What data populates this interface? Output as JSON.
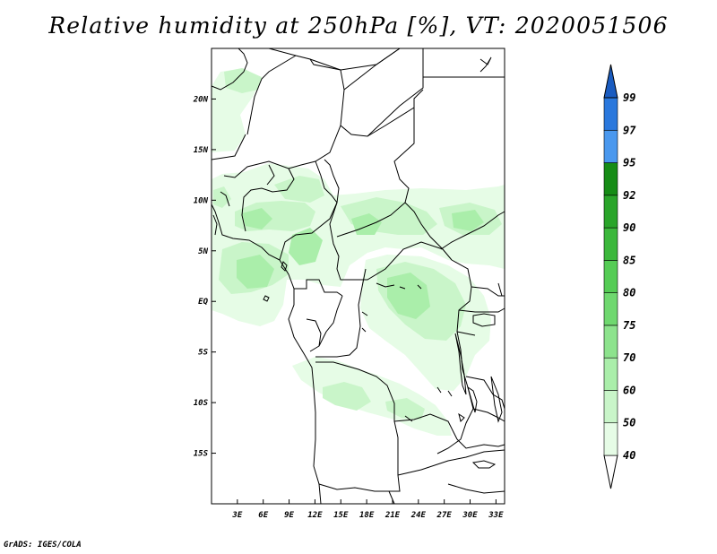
{
  "title": "Relative humidity at 250hPa [%], VT: 2020051506",
  "credit": "GrADS: IGES/COLA",
  "map": {
    "lon_range": [
      0,
      34
    ],
    "lat_range": [
      -20,
      25
    ],
    "lon_ticks": [
      {
        "value": 3,
        "label": "3E"
      },
      {
        "value": 6,
        "label": "6E"
      },
      {
        "value": 9,
        "label": "9E"
      },
      {
        "value": 12,
        "label": "12E"
      },
      {
        "value": 15,
        "label": "15E"
      },
      {
        "value": 18,
        "label": "18E"
      },
      {
        "value": 21,
        "label": "21E"
      },
      {
        "value": 24,
        "label": "24E"
      },
      {
        "value": 27,
        "label": "27E"
      },
      {
        "value": 30,
        "label": "30E"
      },
      {
        "value": 33,
        "label": "33E"
      }
    ],
    "lat_ticks": [
      {
        "value": 20,
        "label": "20N"
      },
      {
        "value": 15,
        "label": "15N"
      },
      {
        "value": 10,
        "label": "10N"
      },
      {
        "value": 5,
        "label": "5N"
      },
      {
        "value": 0,
        "label": "EQ"
      },
      {
        "value": -5,
        "label": "5S"
      },
      {
        "value": -10,
        "label": "10S"
      },
      {
        "value": -15,
        "label": "15S"
      }
    ]
  },
  "colorbar": {
    "levels": [
      "40",
      "50",
      "60",
      "70",
      "75",
      "80",
      "85",
      "90",
      "92",
      "95",
      "97",
      "99"
    ],
    "colors": [
      "#ffffff",
      "#e6fce6",
      "#c9f5c9",
      "#aaeeaa",
      "#8de38d",
      "#6fd86f",
      "#55cc55",
      "#3cb83c",
      "#2aa52a",
      "#168c16",
      "#4a98ee",
      "#2a78dd",
      "#1a5cc0"
    ]
  }
}
